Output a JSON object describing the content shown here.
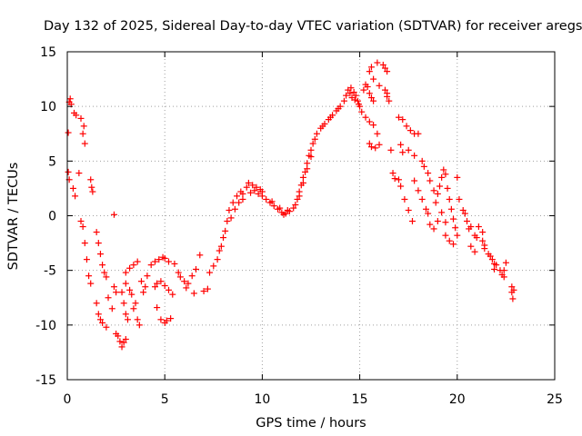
{
  "chart_data": {
    "type": "scatter",
    "title": "Day 132 of 2025, Sidereal Day-to-day VTEC variation (SDTVAR) for receiver aregs",
    "xlabel": "GPS time / hours",
    "ylabel": "SDTVAR / TECUs",
    "xlim": [
      0,
      25
    ],
    "ylim": [
      -15,
      15
    ],
    "xticks": [
      0,
      5,
      10,
      15,
      20,
      25
    ],
    "yticks": [
      -15,
      -10,
      -5,
      0,
      5,
      10,
      15
    ],
    "grid": true,
    "marker": "+",
    "marker_color": "#ff0000",
    "series": [
      {
        "name": "SDTVAR",
        "points": [
          [
            0.05,
            7.6
          ],
          [
            0.1,
            10.4
          ],
          [
            0.15,
            10.7
          ],
          [
            0.2,
            10.2
          ],
          [
            0.05,
            4.0
          ],
          [
            0.1,
            3.3
          ],
          [
            0.3,
            2.5
          ],
          [
            0.4,
            1.8
          ],
          [
            0.35,
            9.4
          ],
          [
            0.45,
            9.2
          ],
          [
            0.7,
            8.9
          ],
          [
            0.8,
            7.5
          ],
          [
            0.9,
            6.6
          ],
          [
            0.85,
            8.2
          ],
          [
            0.7,
            -0.5
          ],
          [
            0.8,
            -1.0
          ],
          [
            0.9,
            -2.5
          ],
          [
            1.0,
            -4.0
          ],
          [
            1.1,
            -5.5
          ],
          [
            1.2,
            -6.2
          ],
          [
            0.6,
            3.9
          ],
          [
            1.2,
            3.3
          ],
          [
            1.25,
            2.6
          ],
          [
            1.3,
            2.2
          ],
          [
            1.5,
            -1.5
          ],
          [
            1.6,
            -2.5
          ],
          [
            1.7,
            -3.5
          ],
          [
            1.8,
            -4.5
          ],
          [
            1.9,
            -5.2
          ],
          [
            2.0,
            -5.6
          ],
          [
            1.5,
            -8.0
          ],
          [
            1.6,
            -9.0
          ],
          [
            1.8,
            -9.8
          ],
          [
            2.0,
            -10.2
          ],
          [
            1.7,
            -9.5
          ],
          [
            2.1,
            -7.5
          ],
          [
            2.3,
            -8.5
          ],
          [
            2.4,
            0.1
          ],
          [
            2.4,
            -6.5
          ],
          [
            2.5,
            -7.0
          ],
          [
            2.5,
            -10.8
          ],
          [
            2.6,
            -11.0
          ],
          [
            2.7,
            -11.5
          ],
          [
            2.8,
            -12.0
          ],
          [
            2.9,
            -11.6
          ],
          [
            3.0,
            -11.3
          ],
          [
            2.8,
            -7.0
          ],
          [
            2.9,
            -8.0
          ],
          [
            3.0,
            -9.0
          ],
          [
            3.1,
            -9.5
          ],
          [
            3.0,
            -6.2
          ],
          [
            3.2,
            -6.8
          ],
          [
            3.3,
            -7.2
          ],
          [
            3.5,
            -8.0
          ],
          [
            3.6,
            -9.5
          ],
          [
            3.7,
            -10.0
          ],
          [
            3.4,
            -8.5
          ],
          [
            3.0,
            -5.2
          ],
          [
            3.2,
            -4.8
          ],
          [
            3.4,
            -4.5
          ],
          [
            3.6,
            -4.2
          ],
          [
            3.8,
            -6.0
          ],
          [
            3.9,
            -7.0
          ],
          [
            4.0,
            -6.5
          ],
          [
            4.1,
            -5.5
          ],
          [
            4.3,
            -4.5
          ],
          [
            4.5,
            -4.2
          ],
          [
            4.7,
            -4.0
          ],
          [
            4.9,
            -3.8
          ],
          [
            5.0,
            -3.9
          ],
          [
            5.2,
            -4.2
          ],
          [
            4.5,
            -6.5
          ],
          [
            4.6,
            -6.2
          ],
          [
            4.8,
            -6.0
          ],
          [
            5.0,
            -6.4
          ],
          [
            5.2,
            -6.8
          ],
          [
            5.4,
            -7.2
          ],
          [
            4.6,
            -8.4
          ],
          [
            4.8,
            -9.5
          ],
          [
            5.0,
            -9.8
          ],
          [
            5.1,
            -9.6
          ],
          [
            5.3,
            -9.4
          ],
          [
            5.5,
            -4.4
          ],
          [
            5.8,
            -5.6
          ],
          [
            6.0,
            -6.0
          ],
          [
            6.2,
            -6.2
          ],
          [
            6.4,
            -5.5
          ],
          [
            6.6,
            -4.9
          ],
          [
            6.8,
            -3.6
          ],
          [
            5.7,
            -5.2
          ],
          [
            6.1,
            -6.6
          ],
          [
            6.5,
            -7.1
          ],
          [
            7.0,
            -6.9
          ],
          [
            7.2,
            -6.7
          ],
          [
            7.3,
            -5.2
          ],
          [
            7.5,
            -4.6
          ],
          [
            7.7,
            -4.0
          ],
          [
            7.8,
            -3.2
          ],
          [
            7.9,
            -2.8
          ],
          [
            8.0,
            -2.0
          ],
          [
            8.1,
            -1.4
          ],
          [
            8.2,
            -0.5
          ],
          [
            8.3,
            0.5
          ],
          [
            8.5,
            1.2
          ],
          [
            8.7,
            1.8
          ],
          [
            8.9,
            2.2
          ],
          [
            9.0,
            2.0
          ],
          [
            8.4,
            -0.2
          ],
          [
            8.6,
            0.6
          ],
          [
            8.8,
            1.2
          ],
          [
            9.0,
            1.5
          ],
          [
            9.2,
            2.6
          ],
          [
            9.3,
            3.0
          ],
          [
            9.5,
            2.8
          ],
          [
            9.7,
            2.6
          ],
          [
            9.9,
            2.4
          ],
          [
            10.0,
            2.2
          ],
          [
            9.4,
            2.1
          ],
          [
            9.6,
            2.3
          ],
          [
            9.8,
            2.0
          ],
          [
            10.0,
            1.8
          ],
          [
            10.2,
            1.5
          ],
          [
            10.4,
            1.2
          ],
          [
            10.6,
            0.9
          ],
          [
            10.8,
            0.6
          ],
          [
            11.0,
            0.3
          ],
          [
            11.1,
            0.1
          ],
          [
            11.2,
            0.2
          ],
          [
            11.4,
            0.4
          ],
          [
            11.6,
            0.7
          ],
          [
            11.7,
            1.0
          ],
          [
            10.5,
            1.3
          ],
          [
            10.9,
            0.7
          ],
          [
            11.3,
            0.5
          ],
          [
            11.8,
            1.5
          ],
          [
            11.9,
            2.2
          ],
          [
            12.0,
            2.8
          ],
          [
            12.1,
            3.5
          ],
          [
            12.2,
            4.0
          ],
          [
            12.3,
            4.8
          ],
          [
            12.4,
            5.5
          ],
          [
            12.5,
            6.0
          ],
          [
            12.6,
            6.6
          ],
          [
            12.7,
            7.0
          ],
          [
            11.9,
            1.8
          ],
          [
            12.1,
            3.0
          ],
          [
            12.3,
            4.3
          ],
          [
            12.5,
            5.4
          ],
          [
            12.8,
            7.5
          ],
          [
            13.0,
            8.0
          ],
          [
            13.2,
            8.4
          ],
          [
            13.4,
            8.8
          ],
          [
            13.6,
            9.2
          ],
          [
            13.8,
            9.6
          ],
          [
            14.0,
            10.0
          ],
          [
            14.2,
            10.5
          ],
          [
            13.1,
            8.2
          ],
          [
            13.5,
            9.0
          ],
          [
            13.9,
            9.8
          ],
          [
            14.3,
            11.0
          ],
          [
            14.4,
            11.5
          ],
          [
            14.5,
            11.2
          ],
          [
            14.6,
            10.8
          ],
          [
            14.7,
            11.3
          ],
          [
            14.8,
            11.0
          ],
          [
            14.9,
            10.5
          ],
          [
            14.55,
            11.7
          ],
          [
            14.75,
            10.6
          ],
          [
            14.95,
            10.2
          ],
          [
            15.0,
            10.0
          ],
          [
            15.2,
            11.5
          ],
          [
            15.3,
            12.0
          ],
          [
            15.4,
            11.8
          ],
          [
            15.5,
            11.2
          ],
          [
            15.6,
            10.8
          ],
          [
            15.7,
            10.5
          ],
          [
            15.1,
            9.5
          ],
          [
            15.3,
            9.0
          ],
          [
            15.5,
            8.6
          ],
          [
            15.7,
            8.3
          ],
          [
            15.5,
            6.6
          ],
          [
            15.6,
            6.3
          ],
          [
            15.8,
            6.2
          ],
          [
            16.0,
            6.5
          ],
          [
            15.9,
            7.5
          ],
          [
            15.5,
            13.2
          ],
          [
            15.6,
            13.6
          ],
          [
            15.9,
            14.0
          ],
          [
            15.7,
            12.5
          ],
          [
            16.0,
            11.9
          ],
          [
            16.2,
            13.8
          ],
          [
            16.3,
            13.5
          ],
          [
            16.4,
            13.2
          ],
          [
            16.3,
            11.5
          ],
          [
            16.4,
            11.2
          ],
          [
            16.5,
            10.5
          ],
          [
            16.4,
            10.9
          ],
          [
            16.6,
            6.0
          ],
          [
            16.7,
            3.9
          ],
          [
            16.8,
            3.4
          ],
          [
            17.0,
            9.0
          ],
          [
            17.2,
            8.8
          ],
          [
            17.4,
            8.2
          ],
          [
            17.6,
            7.8
          ],
          [
            17.8,
            7.5
          ],
          [
            18.0,
            7.5
          ],
          [
            17.1,
            6.5
          ],
          [
            17.2,
            5.8
          ],
          [
            17.5,
            6.0
          ],
          [
            17.8,
            5.5
          ],
          [
            17.0,
            3.3
          ],
          [
            17.1,
            2.7
          ],
          [
            17.3,
            1.5
          ],
          [
            17.5,
            0.5
          ],
          [
            17.7,
            -0.5
          ],
          [
            17.8,
            3.2
          ],
          [
            18.0,
            2.3
          ],
          [
            18.2,
            1.5
          ],
          [
            18.4,
            0.6
          ],
          [
            18.5,
            0.2
          ],
          [
            18.2,
            5.0
          ],
          [
            18.3,
            4.5
          ],
          [
            18.5,
            3.9
          ],
          [
            18.6,
            3.2
          ],
          [
            18.8,
            2.3
          ],
          [
            19.0,
            2.0
          ],
          [
            18.6,
            -0.8
          ],
          [
            18.8,
            -1.2
          ],
          [
            19.0,
            -0.5
          ],
          [
            19.2,
            0.3
          ],
          [
            19.4,
            -0.6
          ],
          [
            18.9,
            1.2
          ],
          [
            19.1,
            2.7
          ],
          [
            19.2,
            3.5
          ],
          [
            19.3,
            4.2
          ],
          [
            19.4,
            3.8
          ],
          [
            19.5,
            2.5
          ],
          [
            19.6,
            1.5
          ],
          [
            19.7,
            0.6
          ],
          [
            19.8,
            -0.3
          ],
          [
            19.9,
            -1.1
          ],
          [
            19.4,
            -1.8
          ],
          [
            19.6,
            -2.3
          ],
          [
            19.8,
            -2.6
          ],
          [
            20.0,
            -1.8
          ],
          [
            20.0,
            3.5
          ],
          [
            20.1,
            1.5
          ],
          [
            20.3,
            0.5
          ],
          [
            20.5,
            -0.5
          ],
          [
            20.6,
            -1.2
          ],
          [
            20.4,
            0.2
          ],
          [
            20.7,
            -1.0
          ],
          [
            20.9,
            -1.8
          ],
          [
            20.7,
            -2.8
          ],
          [
            20.9,
            -3.3
          ],
          [
            21.0,
            -2.0
          ],
          [
            21.1,
            -1.0
          ],
          [
            21.3,
            -1.5
          ],
          [
            21.3,
            -2.3
          ],
          [
            21.4,
            -3.0
          ],
          [
            21.6,
            -3.5
          ],
          [
            21.8,
            -4.0
          ],
          [
            21.9,
            -4.4
          ],
          [
            21.4,
            -2.7
          ],
          [
            21.7,
            -3.7
          ],
          [
            21.9,
            -4.9
          ],
          [
            22.0,
            -4.5
          ],
          [
            22.2,
            -5.0
          ],
          [
            22.3,
            -5.4
          ],
          [
            22.4,
            -5.6
          ],
          [
            22.5,
            -4.3
          ],
          [
            22.4,
            -5.0
          ],
          [
            22.8,
            -6.5
          ],
          [
            22.8,
            -7.0
          ],
          [
            22.85,
            -7.6
          ],
          [
            22.9,
            -6.8
          ]
        ]
      }
    ]
  }
}
